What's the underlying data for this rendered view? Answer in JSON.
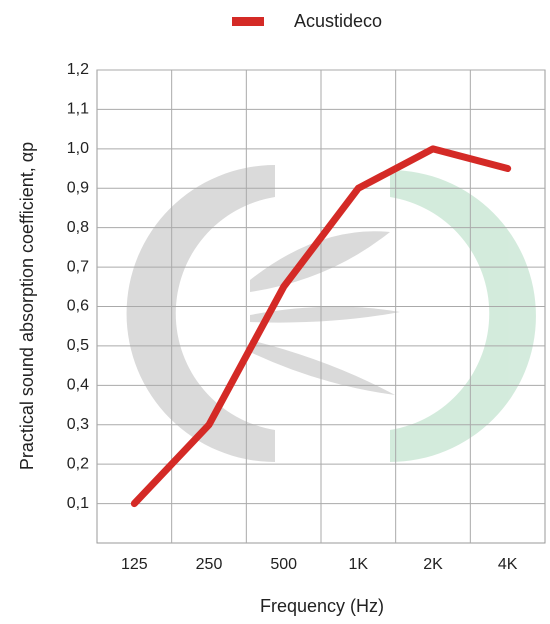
{
  "chart_data": {
    "type": "line",
    "x_label": "Frequency (Hz)",
    "y_label": "Practical sound absorption coefficient, αp",
    "categories": [
      "125",
      "250",
      "500",
      "1K",
      "2K",
      "4K"
    ],
    "series": [
      {
        "name": "Acustideco",
        "color": "#d42a26",
        "values": [
          0.1,
          0.3,
          0.65,
          0.9,
          1.0,
          0.95
        ]
      }
    ],
    "ylim": [
      0,
      1.2
    ],
    "yticks": [
      {
        "value": 0.1,
        "label": "0,1"
      },
      {
        "value": 0.2,
        "label": "0,2"
      },
      {
        "value": 0.3,
        "label": "0,3"
      },
      {
        "value": 0.4,
        "label": "0,4"
      },
      {
        "value": 0.5,
        "label": "0,5"
      },
      {
        "value": 0.6,
        "label": "0,6"
      },
      {
        "value": 0.7,
        "label": "0,7"
      },
      {
        "value": 0.8,
        "label": "0,8"
      },
      {
        "value": 0.9,
        "label": "0,9"
      },
      {
        "value": 1.0,
        "label": "1,0"
      },
      {
        "value": 1.1,
        "label": "1,1"
      },
      {
        "value": 1.2,
        "label": "1,2"
      }
    ],
    "grid": true
  }
}
